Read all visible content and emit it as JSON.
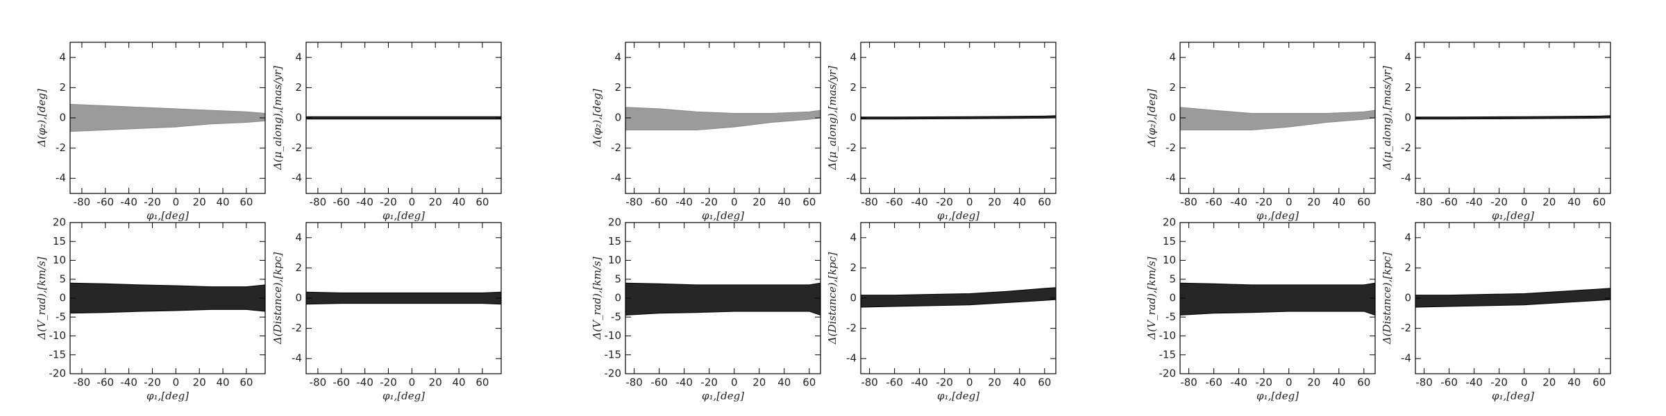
{
  "chart_data": [
    {
      "type": "band",
      "xlabel": "φ₁,[deg]",
      "ylabel": "Δ(φ₂),[deg]",
      "xlim": [
        -90,
        76
      ],
      "xticks": [
        -80,
        -60,
        -40,
        -20,
        0,
        20,
        40,
        60
      ],
      "ylim": [
        -5,
        5
      ],
      "yticks": [
        -4,
        -2,
        0,
        2,
        4
      ],
      "x": [
        -90,
        -60,
        -30,
        0,
        30,
        60,
        76
      ],
      "series": [
        {
          "color": "#8a8a8a",
          "upper": [
            0.9,
            0.8,
            0.7,
            0.6,
            0.5,
            0.4,
            0.3
          ],
          "lower": [
            -0.9,
            -0.8,
            -0.7,
            -0.6,
            -0.4,
            -0.3,
            -0.2
          ]
        }
      ]
    },
    {
      "type": "band",
      "xlabel": "φ₁,[deg]",
      "ylabel": "Δ(μ_along),[mas/yr]",
      "xlim": [
        -90,
        76
      ],
      "xticks": [
        -80,
        -60,
        -40,
        -20,
        0,
        20,
        40,
        60
      ],
      "ylim": [
        -5,
        5
      ],
      "yticks": [
        -4,
        -2,
        0,
        2,
        4
      ],
      "x": [
        -90,
        -60,
        -30,
        0,
        30,
        60,
        76
      ],
      "series": [
        {
          "color": "#000000",
          "upper": [
            0.08,
            0.08,
            0.08,
            0.08,
            0.08,
            0.08,
            0.08
          ],
          "lower": [
            -0.08,
            -0.08,
            -0.08,
            -0.08,
            -0.08,
            -0.08,
            -0.08
          ]
        }
      ]
    },
    {
      "type": "band",
      "xlabel": "φ₁,[deg]",
      "ylabel": "Δ(V_rad),[km/s]",
      "xlim": [
        -90,
        76
      ],
      "xticks": [
        -80,
        -60,
        -40,
        -20,
        0,
        20,
        40,
        60
      ],
      "ylim": [
        -20,
        20
      ],
      "yticks": [
        -20,
        -15,
        -10,
        -5,
        0,
        5,
        10,
        15,
        20
      ],
      "x": [
        -90,
        -60,
        -30,
        0,
        30,
        60,
        76
      ],
      "series": [
        {
          "color": "#000000",
          "upper": [
            4,
            3.8,
            3.5,
            3.3,
            3,
            3,
            3.5
          ],
          "lower": [
            -4,
            -3.8,
            -3.5,
            -3.3,
            -3,
            -3,
            -3.5
          ]
        }
      ]
    },
    {
      "type": "band",
      "xlabel": "φ₁,[deg]",
      "ylabel": "Δ(Distance),[kpc]",
      "xlim": [
        -90,
        76
      ],
      "xticks": [
        -80,
        -60,
        -40,
        -20,
        0,
        20,
        40,
        60
      ],
      "ylim": [
        -5,
        5
      ],
      "yticks": [
        -4,
        -2,
        0,
        2,
        4
      ],
      "x": [
        -90,
        -60,
        -30,
        0,
        30,
        60,
        76
      ],
      "series": [
        {
          "color": "#000000",
          "upper": [
            0.4,
            0.35,
            0.35,
            0.35,
            0.35,
            0.35,
            0.4
          ],
          "lower": [
            -0.4,
            -0.35,
            -0.35,
            -0.35,
            -0.35,
            -0.35,
            -0.4
          ]
        }
      ]
    },
    {
      "type": "band",
      "xlabel": "φ₁,[deg]",
      "ylabel": "Δ(φ₂),[deg]",
      "xlim": [
        -87,
        69
      ],
      "xticks": [
        -80,
        -60,
        -40,
        -20,
        0,
        20,
        40,
        60
      ],
      "ylim": [
        -5,
        5
      ],
      "yticks": [
        -4,
        -2,
        0,
        2,
        4
      ],
      "x": [
        -87,
        -60,
        -30,
        0,
        30,
        60,
        69
      ],
      "series": [
        {
          "color": "#8a8a8a",
          "upper": [
            0.7,
            0.6,
            0.4,
            0.3,
            0.3,
            0.4,
            0.5
          ],
          "lower": [
            -0.8,
            -0.8,
            -0.8,
            -0.6,
            -0.3,
            -0.1,
            0
          ]
        }
      ]
    },
    {
      "type": "band",
      "xlabel": "φ₁,[deg]",
      "ylabel": "Δ(μ_along),[mas/yr]",
      "xlim": [
        -87,
        69
      ],
      "xticks": [
        -80,
        -60,
        -40,
        -20,
        0,
        20,
        40,
        60
      ],
      "ylim": [
        -5,
        5
      ],
      "yticks": [
        -4,
        -2,
        0,
        2,
        4
      ],
      "x": [
        -87,
        -60,
        -30,
        0,
        30,
        60,
        69
      ],
      "series": [
        {
          "color": "#000000",
          "upper": [
            0.06,
            0.06,
            0.07,
            0.08,
            0.1,
            0.12,
            0.14
          ],
          "lower": [
            -0.08,
            -0.08,
            -0.07,
            -0.06,
            -0.04,
            -0.02,
            0
          ]
        }
      ]
    },
    {
      "type": "band",
      "xlabel": "φ₁,[deg]",
      "ylabel": "Δ(V_rad),[km/s]",
      "xlim": [
        -87,
        69
      ],
      "xticks": [
        -80,
        -60,
        -40,
        -20,
        0,
        20,
        40,
        60
      ],
      "ylim": [
        -20,
        20
      ],
      "yticks": [
        -20,
        -15,
        -10,
        -5,
        0,
        5,
        10,
        15,
        20
      ],
      "x": [
        -87,
        -60,
        -30,
        0,
        30,
        60,
        69
      ],
      "series": [
        {
          "color": "#000000",
          "upper": [
            4,
            3.8,
            3.5,
            3.5,
            3.5,
            3.5,
            4
          ],
          "lower": [
            -4.5,
            -4,
            -3.8,
            -3.5,
            -3.5,
            -3.5,
            -4.5
          ]
        }
      ]
    },
    {
      "type": "band",
      "xlabel": "φ₁,[deg]",
      "ylabel": "Δ(Distance),[kpc]",
      "xlim": [
        -87,
        69
      ],
      "xticks": [
        -80,
        -60,
        -40,
        -20,
        0,
        20,
        40,
        60
      ],
      "ylim": [
        -5,
        5
      ],
      "yticks": [
        -4,
        -2,
        0,
        2,
        4
      ],
      "x": [
        -87,
        -60,
        -30,
        0,
        30,
        60,
        69
      ],
      "series": [
        {
          "color": "#000000",
          "upper": [
            0.2,
            0.2,
            0.25,
            0.3,
            0.45,
            0.65,
            0.7
          ],
          "lower": [
            -0.6,
            -0.55,
            -0.5,
            -0.45,
            -0.3,
            -0.15,
            -0.1
          ]
        }
      ]
    },
    {
      "type": "band",
      "xlabel": "φ₁,[deg]",
      "ylabel": "Δ(φ₂),[deg]",
      "xlim": [
        -87,
        69
      ],
      "xticks": [
        -80,
        -60,
        -40,
        -20,
        0,
        20,
        40,
        60
      ],
      "ylim": [
        -5,
        5
      ],
      "yticks": [
        -4,
        -2,
        0,
        2,
        4
      ],
      "x": [
        -87,
        -60,
        -30,
        0,
        30,
        60,
        69
      ],
      "series": [
        {
          "color": "#8a8a8a",
          "upper": [
            0.7,
            0.5,
            0.3,
            0.3,
            0.3,
            0.4,
            0.5
          ],
          "lower": [
            -0.8,
            -0.8,
            -0.8,
            -0.6,
            -0.3,
            -0.1,
            0
          ]
        }
      ]
    },
    {
      "type": "band",
      "xlabel": "φ₁,[deg]",
      "ylabel": "Δ(μ_along),[mas/yr]",
      "xlim": [
        -87,
        69
      ],
      "xticks": [
        -80,
        -60,
        -40,
        -20,
        0,
        20,
        40,
        60
      ],
      "ylim": [
        -5,
        5
      ],
      "yticks": [
        -4,
        -2,
        0,
        2,
        4
      ],
      "x": [
        -87,
        -60,
        -30,
        0,
        30,
        60,
        69
      ],
      "series": [
        {
          "color": "#000000",
          "upper": [
            0.06,
            0.06,
            0.07,
            0.08,
            0.1,
            0.12,
            0.14
          ],
          "lower": [
            -0.08,
            -0.08,
            -0.07,
            -0.06,
            -0.04,
            -0.02,
            0
          ]
        }
      ]
    },
    {
      "type": "band",
      "xlabel": "φ₁,[deg]",
      "ylabel": "Δ(V_rad),[km/s]",
      "xlim": [
        -87,
        69
      ],
      "xticks": [
        -80,
        -60,
        -40,
        -20,
        0,
        20,
        40,
        60
      ],
      "ylim": [
        -20,
        20
      ],
      "yticks": [
        -20,
        -15,
        -10,
        -5,
        0,
        5,
        10,
        15,
        20
      ],
      "x": [
        -87,
        -60,
        -30,
        0,
        30,
        60,
        69
      ],
      "series": [
        {
          "color": "#000000",
          "upper": [
            4,
            3.8,
            3.5,
            3.5,
            3.5,
            3.5,
            4
          ],
          "lower": [
            -4.5,
            -4,
            -3.8,
            -3.5,
            -3.5,
            -3.5,
            -4.5
          ]
        }
      ]
    },
    {
      "type": "band",
      "xlabel": "φ₁,[deg]",
      "ylabel": "Δ(Distance),[kpc]",
      "xlim": [
        -87,
        69
      ],
      "xticks": [
        -80,
        -60,
        -40,
        -20,
        0,
        20,
        40,
        60
      ],
      "ylim": [
        -5,
        5
      ],
      "yticks": [
        -4,
        -2,
        0,
        2,
        4
      ],
      "x": [
        -87,
        -60,
        -30,
        0,
        30,
        60,
        69
      ],
      "series": [
        {
          "color": "#000000",
          "upper": [
            0.2,
            0.2,
            0.25,
            0.3,
            0.45,
            0.6,
            0.65
          ],
          "lower": [
            -0.6,
            -0.55,
            -0.5,
            -0.45,
            -0.3,
            -0.15,
            -0.1
          ]
        }
      ]
    }
  ]
}
